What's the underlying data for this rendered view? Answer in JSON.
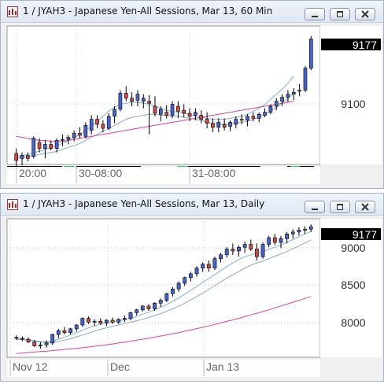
{
  "windows": [
    {
      "title": "1 / JYAH3 - Japanese Yen-All Sessions, Mar 13, 60 Min",
      "buttons": [
        "minimize",
        "restore",
        "close"
      ],
      "chart_data": {
        "type": "candlestick",
        "symbol": "JYAH3",
        "interval": "60 Min",
        "last_price": "9177",
        "price_ticks": [
          "9100"
        ],
        "ylim": [
          9052,
          9190
        ],
        "time_labels": [
          "20:00",
          "30-08:00",
          "31-08:00"
        ],
        "ohlc": [
          [
            9063,
            9068,
            9050,
            9056
          ],
          [
            9058,
            9064,
            9051,
            9061
          ],
          [
            9061,
            9064,
            9055,
            9058
          ],
          [
            9060,
            9080,
            9058,
            9078
          ],
          [
            9074,
            9078,
            9064,
            9068
          ],
          [
            9068,
            9076,
            9058,
            9072
          ],
          [
            9072,
            9076,
            9066,
            9068
          ],
          [
            9068,
            9078,
            9064,
            9076
          ],
          [
            9076,
            9082,
            9070,
            9077
          ],
          [
            9077,
            9081,
            9072,
            9079
          ],
          [
            9079,
            9086,
            9075,
            9083
          ],
          [
            9083,
            9089,
            9078,
            9081
          ],
          [
            9080,
            9094,
            9078,
            9091
          ],
          [
            9086,
            9101,
            9082,
            9097
          ],
          [
            9097,
            9101,
            9088,
            9092
          ],
          [
            9092,
            9096,
            9084,
            9088
          ],
          [
            9088,
            9103,
            9086,
            9100
          ],
          [
            9100,
            9110,
            9093,
            9107
          ],
          [
            9107,
            9126,
            9105,
            9123
          ],
          [
            9123,
            9130,
            9115,
            9118
          ],
          [
            9118,
            9124,
            9110,
            9115
          ],
          [
            9116,
            9126,
            9110,
            9122
          ],
          [
            9115,
            9122,
            9108,
            9118
          ],
          [
            9115,
            9121,
            9082,
            9113
          ],
          [
            9110,
            9120,
            9100,
            9103
          ],
          [
            9102,
            9110,
            9095,
            9107
          ],
          [
            9104,
            9111,
            9098,
            9101
          ],
          [
            9101,
            9115,
            9098,
            9112
          ],
          [
            9110,
            9115,
            9098,
            9105
          ],
          [
            9106,
            9112,
            9099,
            9103
          ],
          [
            9103,
            9108,
            9095,
            9100
          ],
          [
            9101,
            9108,
            9096,
            9104
          ],
          [
            9101,
            9106,
            9093,
            9097
          ],
          [
            9097,
            9104,
            9088,
            9093
          ],
          [
            9093,
            9098,
            9084,
            9089
          ],
          [
            9089,
            9098,
            9084,
            9094
          ],
          [
            9092,
            9098,
            9086,
            9089
          ],
          [
            9090,
            9096,
            9085,
            9094
          ],
          [
            9092,
            9100,
            9088,
            9097
          ],
          [
            9097,
            9102,
            9092,
            9096
          ],
          [
            9096,
            9102,
            9090,
            9100
          ],
          [
            9100,
            9104,
            9095,
            9098
          ],
          [
            9098,
            9104,
            9094,
            9102
          ],
          [
            9101,
            9108,
            9099,
            9104
          ],
          [
            9104,
            9112,
            9102,
            9110
          ],
          [
            9110,
            9118,
            9106,
            9115
          ],
          [
            9115,
            9122,
            9110,
            9119
          ],
          [
            9119,
            9126,
            9114,
            9122
          ],
          [
            9122,
            9128,
            9116,
            9124
          ],
          [
            9125,
            9132,
            9120,
            9126
          ],
          [
            9126,
            9150,
            9124,
            9148
          ],
          [
            9148,
            9180,
            9146,
            9177
          ]
        ],
        "moving_averages": [
          {
            "name": "fast",
            "color": "#7ab4d6",
            "values": [
              9060,
              9061,
              9062,
              9064,
              9065,
              9067,
              9069,
              9071,
              9073,
              9076,
              9079,
              9082,
              9086,
              9090,
              9095,
              9100,
              9105,
              9109,
              9112,
              9113,
              9114,
              9114,
              9113,
              9112,
              9110,
              9108,
              9106,
              9105,
              9104,
              9103,
              9102,
              9100,
              9099,
              9098,
              9097,
              9097,
              9097,
              9098,
              9099,
              9100,
              9102,
              9105,
              9108,
              9112,
              9117,
              9122,
              9127,
              9133,
              9140
            ]
          },
          {
            "name": "medium",
            "color": "#8fa8c0",
            "values": [
              9058,
              9059,
              9060,
              9061,
              9062,
              9063,
              9064,
              9065,
              9067,
              9069,
              9071,
              9073,
              9076,
              9079,
              9082,
              9085,
              9088,
              9091,
              9094,
              9097,
              9099,
              9100,
              9101,
              9102,
              9102,
              9101,
              9101,
              9100,
              9100,
              9099,
              9098,
              9097,
              9096,
              9094,
              9093,
              9092,
              9092,
              9092,
              9093,
              9094,
              9095,
              9097,
              9099,
              9102,
              9105,
              9109,
              9113,
              9118,
              9123
            ]
          },
          {
            "name": "slow",
            "color": "#e040a0",
            "values": [
              9080,
              9079,
              9078,
              9077,
              9076,
              9076,
              9075,
              9075,
              9075,
              9076,
              9077,
              9078,
              9079,
              9080,
              9081,
              9082,
              9083,
              9084,
              9085,
              9086,
              9087,
              9088,
              9089,
              9090,
              9091,
              9092,
              9093,
              9094,
              9095,
              9096,
              9097,
              9098,
              9099,
              9100,
              9101,
              9102,
              9103,
              9104,
              9105,
              9106,
              9107,
              9108,
              9109,
              9110,
              9111,
              9112,
              9113,
              9114,
              9115
            ]
          }
        ]
      }
    },
    {
      "title": "1 / JYAH3 - Japanese Yen-All Sessions, Mar 13, Daily",
      "buttons": [
        "minimize",
        "restore",
        "close"
      ],
      "chart_data": {
        "type": "candlestick",
        "symbol": "JYAH3",
        "interval": "Daily",
        "last_price": "9177",
        "price_ticks": [
          "9000",
          "8500",
          "8000"
        ],
        "ylim": [
          7800,
          9260
        ],
        "time_labels": [
          "Nov 12",
          "Dec",
          "Jan 13"
        ],
        "ohlc": [
          [
            8010,
            8030,
            7980,
            8000
          ],
          [
            8000,
            8020,
            7970,
            7990
          ],
          [
            7990,
            8010,
            7950,
            7960
          ],
          [
            7960,
            7980,
            7910,
            7920
          ],
          [
            7920,
            7960,
            7890,
            7930
          ],
          [
            7930,
            7980,
            7900,
            7950
          ],
          [
            7950,
            8050,
            7930,
            8040
          ],
          [
            8040,
            8100,
            8000,
            8080
          ],
          [
            8080,
            8120,
            8040,
            8060
          ],
          [
            8060,
            8110,
            8040,
            8100
          ],
          [
            8100,
            8150,
            8070,
            8140
          ],
          [
            8140,
            8220,
            8120,
            8210
          ],
          [
            8210,
            8230,
            8150,
            8170
          ],
          [
            8170,
            8200,
            8130,
            8180
          ],
          [
            8180,
            8210,
            8140,
            8160
          ],
          [
            8160,
            8200,
            8130,
            8190
          ],
          [
            8190,
            8220,
            8150,
            8170
          ],
          [
            8170,
            8210,
            8150,
            8200
          ],
          [
            8200,
            8240,
            8170,
            8210
          ],
          [
            8210,
            8280,
            8190,
            8270
          ],
          [
            8270,
            8310,
            8240,
            8300
          ],
          [
            8300,
            8350,
            8280,
            8340
          ],
          [
            8340,
            8360,
            8290,
            8310
          ],
          [
            8310,
            8380,
            8290,
            8370
          ],
          [
            8370,
            8420,
            8330,
            8400
          ],
          [
            8400,
            8480,
            8380,
            8470
          ],
          [
            8470,
            8540,
            8440,
            8520
          ],
          [
            8520,
            8600,
            8490,
            8580
          ],
          [
            8580,
            8650,
            8550,
            8640
          ],
          [
            8640,
            8700,
            8600,
            8680
          ],
          [
            8680,
            8760,
            8650,
            8740
          ],
          [
            8740,
            8800,
            8700,
            8780
          ],
          [
            8780,
            8820,
            8700,
            8740
          ],
          [
            8740,
            8860,
            8720,
            8840
          ],
          [
            8840,
            8900,
            8800,
            8880
          ],
          [
            8880,
            8960,
            8850,
            8940
          ],
          [
            8940,
            9000,
            8880,
            8920
          ],
          [
            8920,
            8980,
            8860,
            8960
          ],
          [
            8960,
            9020,
            8900,
            8990
          ],
          [
            8990,
            9040,
            8920,
            8940
          ],
          [
            8940,
            9000,
            8820,
            8860
          ],
          [
            8860,
            9010,
            8840,
            8990
          ],
          [
            8990,
            9080,
            8960,
            9060
          ],
          [
            9060,
            9100,
            8980,
            9010
          ],
          [
            9010,
            9080,
            8950,
            9050
          ],
          [
            9050,
            9120,
            9000,
            9100
          ],
          [
            9100,
            9150,
            9050,
            9120
          ],
          [
            9120,
            9170,
            9080,
            9140
          ],
          [
            9140,
            9180,
            9100,
            9150
          ],
          [
            9150,
            9200,
            9120,
            9177
          ]
        ],
        "moving_averages": [
          {
            "name": "fast",
            "color": "#7ab4d6",
            "values": [
              8000,
              7995,
              7985,
              7975,
              7965,
              7962,
              7970,
              7990,
              8010,
              8035,
              8060,
              8085,
              8110,
              8130,
              8150,
              8165,
              8175,
              8185,
              8195,
              8210,
              8230,
              8255,
              8275,
              8300,
              8325,
              8355,
              8390,
              8425,
              8465,
              8505,
              8545,
              8590,
              8630,
              8670,
              8715,
              8755,
              8795,
              8830,
              8860,
              8880,
              8895,
              8915,
              8940,
              8960,
              8985,
              9010,
              9040,
              9070,
              9100,
              9125
            ]
          },
          {
            "name": "medium",
            "color": "#8fa8c0",
            "values": [
              7990,
              7985,
              7980,
              7970,
              7960,
              7955,
              7955,
              7965,
              7980,
              7995,
              8015,
              8035,
              8055,
              8075,
              8095,
              8110,
              8125,
              8140,
              8155,
              8170,
              8185,
              8200,
              8220,
              8240,
              8260,
              8285,
              8310,
              8340,
              8370,
              8405,
              8440,
              8475,
              8515,
              8555,
              8595,
              8635,
              8670,
              8705,
              8740,
              8770,
              8795,
              8815,
              8840,
              8865,
              8890,
              8915,
              8945,
              8975,
              9005,
              9035
            ]
          },
          {
            "name": "slow",
            "color": "#e040a0",
            "values": [
              7840,
              7845,
              7850,
              7855,
              7860,
              7865,
              7870,
              7876,
              7882,
              7888,
              7894,
              7900,
              7908,
              7916,
              7924,
              7932,
              7940,
              7950,
              7960,
              7970,
              7980,
              7990,
              8000,
              8012,
              8024,
              8036,
              8048,
              8060,
              8074,
              8088,
              8102,
              8116,
              8130,
              8146,
              8162,
              8178,
              8194,
              8210,
              8228,
              8246,
              8264,
              8282,
              8300,
              8320,
              8340,
              8360,
              8380,
              8400,
              8420,
              8440
            ]
          }
        ]
      }
    }
  ]
}
